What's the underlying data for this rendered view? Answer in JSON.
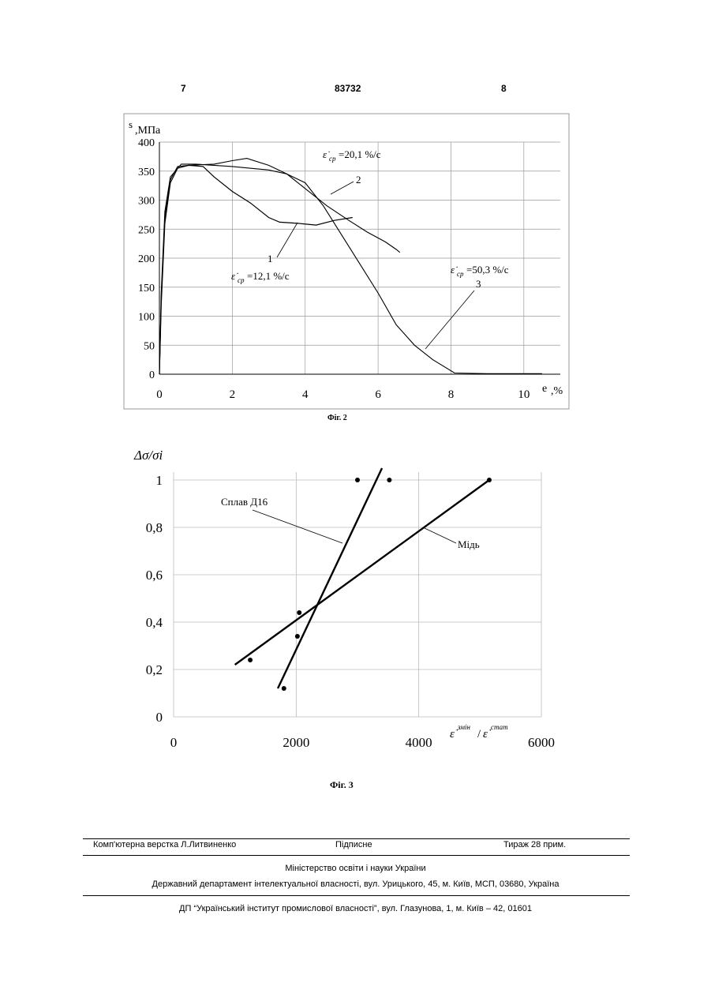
{
  "header": {
    "left_page": "7",
    "patent_number": "83732",
    "right_page": "8"
  },
  "fig2": {
    "caption": "Фіг. 2",
    "ylabel_s": "s",
    "ylabel_unit": ",МПа",
    "xlabel_e": "e",
    "xlabel_unit": ",%",
    "annotations": {
      "curve1_num": "1",
      "curve1_rate": "=12,1 %/с",
      "curve2_num": "2",
      "curve2_rate": "=20,1 %/с",
      "curve3_num": "3",
      "curve3_rate": "=50,3 %/с",
      "rate_symbol": "ε̇",
      "rate_sub": "ср"
    }
  },
  "fig3": {
    "caption": "Фіг. 3",
    "ylabel": "Δσ/σi",
    "xlabel_top1": "змін",
    "xlabel_top2": "стат",
    "label_d16": "Сплав Д16",
    "label_copper": "Мідь"
  },
  "chart_data": [
    {
      "type": "line",
      "title": "",
      "xlabel": "e,%",
      "ylabel": "s,МПа",
      "xlim": [
        0,
        11
      ],
      "ylim": [
        0,
        400
      ],
      "x_ticks": [
        "0",
        "2",
        "4",
        "6",
        "8",
        "10"
      ],
      "y_ticks": [
        "0",
        "50",
        "100",
        "150",
        "200",
        "250",
        "300",
        "350",
        "400"
      ],
      "grid": true,
      "series": [
        {
          "name": "1",
          "points": [
            [
              0,
              0
            ],
            [
              0.05,
              120
            ],
            [
              0.15,
              260
            ],
            [
              0.3,
              330
            ],
            [
              0.5,
              355
            ],
            [
              0.8,
              360
            ],
            [
              1.2,
              358
            ],
            [
              1.5,
              340
            ],
            [
              2,
              315
            ],
            [
              2.5,
              295
            ],
            [
              3,
              270
            ],
            [
              3.3,
              262
            ],
            [
              3.8,
              260
            ],
            [
              4.3,
              257
            ],
            [
              4.8,
              265
            ],
            [
              5.3,
              270
            ]
          ]
        },
        {
          "name": "2",
          "points": [
            [
              0,
              0
            ],
            [
              0.05,
              130
            ],
            [
              0.15,
              270
            ],
            [
              0.3,
              335
            ],
            [
              0.5,
              358
            ],
            [
              0.8,
              360
            ],
            [
              1.5,
              362
            ],
            [
              2,
              368
            ],
            [
              2.4,
              372
            ],
            [
              3,
              360
            ],
            [
              3.5,
              345
            ],
            [
              4,
              320
            ],
            [
              4.6,
              290
            ],
            [
              5.2,
              265
            ],
            [
              5.7,
              245
            ],
            [
              6.2,
              228
            ],
            [
              6.5,
              215
            ],
            [
              6.6,
              210
            ]
          ]
        },
        {
          "name": "3",
          "points": [
            [
              0,
              0
            ],
            [
              0.05,
              140
            ],
            [
              0.15,
              280
            ],
            [
              0.3,
              340
            ],
            [
              0.6,
              362
            ],
            [
              1,
              362
            ],
            [
              2,
              358
            ],
            [
              3,
              352
            ],
            [
              3.5,
              345
            ],
            [
              4,
              330
            ],
            [
              4.5,
              290
            ],
            [
              5,
              240
            ],
            [
              5.5,
              190
            ],
            [
              6,
              140
            ],
            [
              6.5,
              85
            ],
            [
              7,
              50
            ],
            [
              7.5,
              25
            ],
            [
              8.1,
              2
            ],
            [
              9,
              1
            ],
            [
              10,
              1
            ],
            [
              10.5,
              1
            ]
          ]
        }
      ]
    },
    {
      "type": "scatter",
      "title": "",
      "xlabel": "ε̇змін/ε̇стат",
      "ylabel": "Δσ/σi",
      "xlim": [
        0,
        6000
      ],
      "ylim": [
        0,
        1
      ],
      "x_ticks": [
        "0",
        "2000",
        "4000",
        "6000"
      ],
      "y_ticks": [
        "0",
        "0,2",
        "0,4",
        "0,6",
        "0,8",
        "1"
      ],
      "grid": true,
      "series": [
        {
          "name": "Сплав Д16",
          "points": [
            [
              1800,
              0.12
            ],
            [
              2020,
              0.34
            ],
            [
              3000,
              1.0
            ],
            [
              3520,
              1.0
            ]
          ],
          "fit_line": [
            [
              1700,
              0.12
            ],
            [
              3400,
              1.05
            ]
          ]
        },
        {
          "name": "Мідь",
          "points": [
            [
              1250,
              0.24
            ],
            [
              2050,
              0.44
            ],
            [
              5150,
              1.0
            ]
          ],
          "fit_line": [
            [
              1000,
              0.22
            ],
            [
              5150,
              1.0
            ]
          ]
        }
      ]
    }
  ],
  "footer": {
    "layout": "Комп'ютерна верстка Л.Литвиненко",
    "signed": "Підписне",
    "circulation": "Тираж 28 прим.",
    "ministry": "Міністерство освіти і науки України",
    "department": "Державний департамент інтелектуальної власності, вул. Урицького, 45, м. Київ, МСП, 03680, Україна",
    "institute": "ДП “Український інститут промислової власності”, вул. Глазунова, 1, м. Київ – 42, 01601"
  }
}
